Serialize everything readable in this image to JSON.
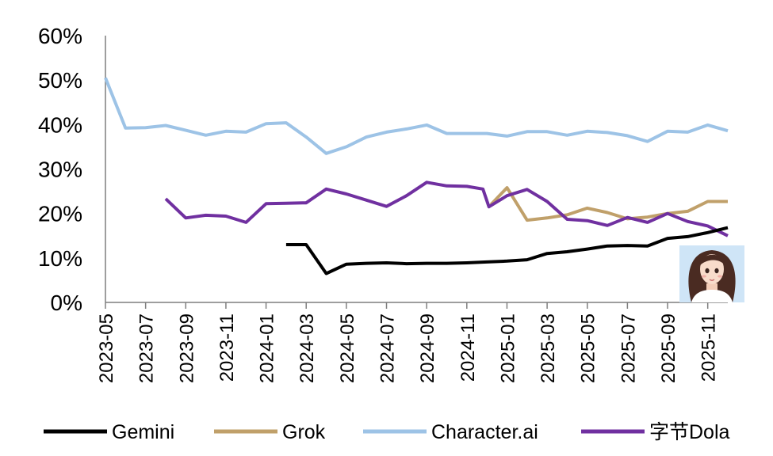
{
  "chart_data": {
    "type": "line",
    "title": "",
    "xlabel": "",
    "ylabel": "",
    "ylim": [
      0,
      0.6
    ],
    "yticks": [
      {
        "value": 0.0,
        "label": "0%"
      },
      {
        "value": 0.1,
        "label": "10%"
      },
      {
        "value": 0.2,
        "label": "20%"
      },
      {
        "value": 0.3,
        "label": "30%"
      },
      {
        "value": 0.4,
        "label": "40%"
      },
      {
        "value": 0.5,
        "label": "50%"
      },
      {
        "value": 0.6,
        "label": "60%"
      }
    ],
    "x_range": [
      0,
      31
    ],
    "xticks": [
      {
        "value": 0,
        "label": "2023-05"
      },
      {
        "value": 2,
        "label": "2023-07"
      },
      {
        "value": 4,
        "label": "2023-09"
      },
      {
        "value": 6,
        "label": "2023-11"
      },
      {
        "value": 8,
        "label": "2024-01"
      },
      {
        "value": 10,
        "label": "2024-03"
      },
      {
        "value": 12,
        "label": "2024-05"
      },
      {
        "value": 14,
        "label": "2024-07"
      },
      {
        "value": 16,
        "label": "2024-09"
      },
      {
        "value": 18,
        "label": "2024-11"
      },
      {
        "value": 20,
        "label": "2025-01"
      },
      {
        "value": 22,
        "label": "2025-03"
      },
      {
        "value": 24,
        "label": "2025-05"
      },
      {
        "value": 26,
        "label": "2025-07"
      },
      {
        "value": 28,
        "label": "2025-09"
      },
      {
        "value": 30,
        "label": "2025-11"
      }
    ],
    "legend_position": "bottom",
    "series": [
      {
        "name": "Gemini",
        "color": "#000000",
        "points": [
          [
            9,
            0.13
          ],
          [
            10,
            0.13
          ],
          [
            11,
            0.065
          ],
          [
            12,
            0.086
          ],
          [
            13,
            0.088
          ],
          [
            14,
            0.089
          ],
          [
            15,
            0.087
          ],
          [
            16,
            0.088
          ],
          [
            17,
            0.088
          ],
          [
            18,
            0.089
          ],
          [
            19,
            0.091
          ],
          [
            20,
            0.093
          ],
          [
            21,
            0.096
          ],
          [
            22,
            0.11
          ],
          [
            23,
            0.114
          ],
          [
            24,
            0.12
          ],
          [
            25,
            0.127
          ],
          [
            26,
            0.128
          ],
          [
            27,
            0.127
          ],
          [
            28,
            0.144
          ],
          [
            29,
            0.148
          ],
          [
            30,
            0.157
          ],
          [
            31,
            0.168
          ]
        ]
      },
      {
        "name": "Grok",
        "color": "#C0A06A",
        "points": [
          [
            19.2,
            0.22
          ],
          [
            20,
            0.258
          ],
          [
            21,
            0.185
          ],
          [
            22,
            0.19
          ],
          [
            23,
            0.197
          ],
          [
            24,
            0.212
          ],
          [
            25,
            0.202
          ],
          [
            26,
            0.188
          ],
          [
            27,
            0.192
          ],
          [
            28,
            0.2
          ],
          [
            29,
            0.205
          ],
          [
            30,
            0.227
          ],
          [
            31,
            0.227
          ]
        ]
      },
      {
        "name": "Character.ai",
        "color": "#9DC3E6",
        "points": [
          [
            0,
            0.505
          ],
          [
            1,
            0.392
          ],
          [
            2,
            0.393
          ],
          [
            3,
            0.398
          ],
          [
            4,
            0.387
          ],
          [
            5,
            0.376
          ],
          [
            6,
            0.385
          ],
          [
            7,
            0.383
          ],
          [
            8,
            0.402
          ],
          [
            9,
            0.404
          ],
          [
            10,
            0.372
          ],
          [
            11,
            0.335
          ],
          [
            12,
            0.35
          ],
          [
            13,
            0.372
          ],
          [
            14,
            0.383
          ],
          [
            15,
            0.39
          ],
          [
            16,
            0.399
          ],
          [
            17,
            0.38
          ],
          [
            18,
            0.38
          ],
          [
            19,
            0.38
          ],
          [
            20,
            0.374
          ],
          [
            21,
            0.384
          ],
          [
            22,
            0.384
          ],
          [
            23,
            0.376
          ],
          [
            24,
            0.385
          ],
          [
            25,
            0.382
          ],
          [
            26,
            0.375
          ],
          [
            27,
            0.362
          ],
          [
            28,
            0.385
          ],
          [
            29,
            0.383
          ],
          [
            30,
            0.399
          ],
          [
            31,
            0.386
          ]
        ]
      },
      {
        "name": "字节Dola",
        "color": "#7030A0",
        "points": [
          [
            3,
            0.233
          ],
          [
            4,
            0.19
          ],
          [
            5,
            0.196
          ],
          [
            6,
            0.194
          ],
          [
            7,
            0.18
          ],
          [
            8,
            0.222
          ],
          [
            9,
            0.223
          ],
          [
            10,
            0.224
          ],
          [
            11,
            0.255
          ],
          [
            12,
            0.244
          ],
          [
            13,
            0.23
          ],
          [
            14,
            0.216
          ],
          [
            15,
            0.24
          ],
          [
            16,
            0.27
          ],
          [
            17,
            0.262
          ],
          [
            18,
            0.261
          ],
          [
            18.8,
            0.255
          ],
          [
            19.1,
            0.215
          ],
          [
            20,
            0.24
          ],
          [
            21,
            0.254
          ],
          [
            22,
            0.227
          ],
          [
            23,
            0.187
          ],
          [
            24,
            0.184
          ],
          [
            25,
            0.173
          ],
          [
            26,
            0.191
          ],
          [
            27,
            0.18
          ],
          [
            28,
            0.2
          ],
          [
            29,
            0.182
          ],
          [
            30,
            0.172
          ],
          [
            31,
            0.15
          ]
        ]
      }
    ]
  },
  "decoration": {
    "avatar_icon": "cartoon-girl-avatar-icon",
    "avatar_bg": "#CFE5F7"
  }
}
